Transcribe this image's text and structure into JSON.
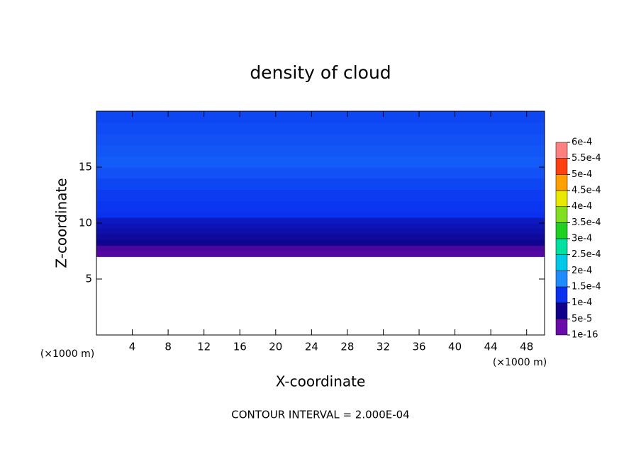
{
  "chart_data": {
    "type": "contour",
    "title": "density of cloud",
    "xlabel": "X-coordinate",
    "ylabel": "Z-coordinate",
    "x_unit": "(×1000 m)",
    "y_unit": "(×1000 m)",
    "annotation": "CONTOUR INTERVAL = 2.000E-04",
    "xlim": [
      0,
      50
    ],
    "xticks": [
      4,
      8,
      12,
      16,
      20,
      24,
      28,
      32,
      36,
      40,
      44,
      48
    ],
    "ylim": [
      0,
      20
    ],
    "yticks": [
      5,
      10,
      15
    ],
    "z": [
      7.0,
      7.5,
      8.0,
      8.5,
      9.0,
      9.5,
      10.0,
      10.5,
      11.0,
      12.0,
      13.0,
      14.0,
      15.0,
      16.0,
      17.0,
      18.0,
      19.0,
      20.0
    ],
    "density": [
      2e-05,
      3e-05,
      5.5e-05,
      6.5e-05,
      7.5e-05,
      8.5e-05,
      9.5e-05,
      0.0001,
      0.000105,
      0.00011,
      0.00012,
      0.00013,
      0.00014,
      0.000135,
      0.00013,
      0.000125,
      0.00012,
      0.000115
    ],
    "colorbar": {
      "levels": [
        {
          "value": 1e-16,
          "label": "1e-16"
        },
        {
          "value": 5e-05,
          "label": "5e-5"
        },
        {
          "value": 0.0001,
          "label": "1e-4"
        },
        {
          "value": 0.00015,
          "label": "1.5e-4"
        },
        {
          "value": 0.0002,
          "label": "2e-4"
        },
        {
          "value": 0.00025,
          "label": "2.5e-4"
        },
        {
          "value": 0.0003,
          "label": "3e-4"
        },
        {
          "value": 0.00035,
          "label": "3.5e-4"
        },
        {
          "value": 0.0004,
          "label": "4e-4"
        },
        {
          "value": 0.00045,
          "label": "4.5e-4"
        },
        {
          "value": 0.0005,
          "label": "5e-4"
        },
        {
          "value": 0.00055,
          "label": "5.5e-4"
        },
        {
          "value": 0.0006,
          "label": "6e-4"
        }
      ],
      "colors": [
        "#6a0aa8",
        "#10008a",
        "#0a30f0",
        "#1e8cff",
        "#00c8e6",
        "#00e0a0",
        "#20d020",
        "#80e020",
        "#e8e800",
        "#ffa000",
        "#ff4010",
        "#ff8080"
      ]
    }
  }
}
